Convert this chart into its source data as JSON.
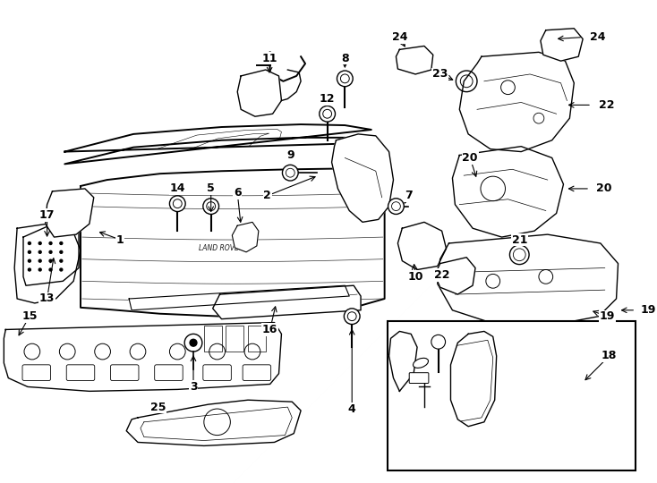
{
  "bg_color": "#ffffff",
  "line_color": "#000000",
  "figsize": [
    7.34,
    5.4
  ],
  "dpi": 100,
  "label_fontsize": 9,
  "small_fontsize": 7
}
